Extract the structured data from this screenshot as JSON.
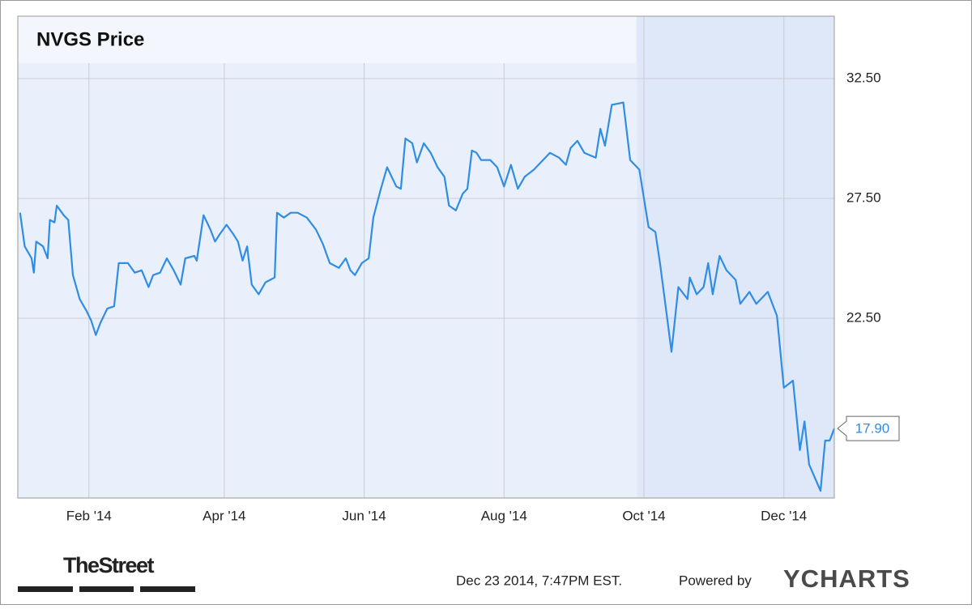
{
  "chart_data": {
    "type": "line",
    "title": "NVGS Price",
    "color": "#2f8de4",
    "x": [
      "2014-01-02",
      "2014-01-04",
      "2014-01-07",
      "2014-01-08",
      "2014-01-09",
      "2014-01-12",
      "2014-01-14",
      "2014-01-15",
      "2014-01-17",
      "2014-01-18",
      "2014-01-21",
      "2014-01-23",
      "2014-01-25",
      "2014-01-28",
      "2014-01-31",
      "2014-02-02",
      "2014-02-04",
      "2014-02-06",
      "2014-02-09",
      "2014-02-12",
      "2014-02-14",
      "2014-02-18",
      "2014-02-21",
      "2014-02-24",
      "2014-02-27",
      "2014-03-01",
      "2014-03-04",
      "2014-03-07",
      "2014-03-10",
      "2014-03-13",
      "2014-03-15",
      "2014-03-19",
      "2014-03-20",
      "2014-03-23",
      "2014-03-26",
      "2014-03-28",
      "2014-03-30",
      "2014-04-02",
      "2014-04-05",
      "2014-04-07",
      "2014-04-09",
      "2014-04-11",
      "2014-04-13",
      "2014-04-16",
      "2014-04-19",
      "2014-04-23",
      "2014-04-24",
      "2014-04-27",
      "2014-04-30",
      "2014-05-03",
      "2014-05-07",
      "2014-05-11",
      "2014-05-14",
      "2014-05-17",
      "2014-05-21",
      "2014-05-24",
      "2014-05-26",
      "2014-05-28",
      "2014-05-31",
      "2014-06-03",
      "2014-06-05",
      "2014-06-08",
      "2014-06-11",
      "2014-06-15",
      "2014-06-17",
      "2014-06-19",
      "2014-06-22",
      "2014-06-24",
      "2014-06-27",
      "2014-06-30",
      "2014-07-03",
      "2014-07-06",
      "2014-07-08",
      "2014-07-11",
      "2014-07-14",
      "2014-07-16",
      "2014-07-18",
      "2014-07-20",
      "2014-07-22",
      "2014-07-26",
      "2014-07-29",
      "2014-08-01",
      "2014-08-04",
      "2014-08-07",
      "2014-08-10",
      "2014-08-14",
      "2014-08-18",
      "2014-08-21",
      "2014-08-25",
      "2014-08-28",
      "2014-08-30",
      "2014-09-02",
      "2014-09-05",
      "2014-09-10",
      "2014-09-12",
      "2014-09-14",
      "2014-09-17",
      "2014-09-22",
      "2014-09-25",
      "2014-09-29",
      "2014-10-03",
      "2014-10-06",
      "2014-10-08",
      "2014-10-11",
      "2014-10-13",
      "2014-10-16",
      "2014-10-20",
      "2014-10-21",
      "2014-10-24",
      "2014-10-27",
      "2014-10-29",
      "2014-10-31",
      "2014-11-03",
      "2014-11-06",
      "2014-11-10",
      "2014-11-12",
      "2014-11-16",
      "2014-11-19",
      "2014-11-24",
      "2014-11-28",
      "2014-12-01",
      "2014-12-05",
      "2014-12-08",
      "2014-12-10",
      "2014-12-12",
      "2014-12-17",
      "2014-12-19",
      "2014-12-21",
      "2014-12-23"
    ],
    "values": [
      26.9,
      25.5,
      25.0,
      24.4,
      25.7,
      25.5,
      25.0,
      26.6,
      26.5,
      27.2,
      26.8,
      26.6,
      24.3,
      23.3,
      22.8,
      22.4,
      21.8,
      22.3,
      22.9,
      23.0,
      24.8,
      24.8,
      24.4,
      24.5,
      23.8,
      24.3,
      24.4,
      25.0,
      24.5,
      23.9,
      25.0,
      25.1,
      24.9,
      26.8,
      26.2,
      25.7,
      26.0,
      26.4,
      26.0,
      25.7,
      24.9,
      25.5,
      23.9,
      23.5,
      24.0,
      24.2,
      26.9,
      26.7,
      26.9,
      26.9,
      26.7,
      26.2,
      25.6,
      24.8,
      24.6,
      25.0,
      24.5,
      24.3,
      24.8,
      25.0,
      26.7,
      27.8,
      28.8,
      28.0,
      27.9,
      30.0,
      29.8,
      29.0,
      29.8,
      29.4,
      28.8,
      28.4,
      27.2,
      27.0,
      27.7,
      27.9,
      29.5,
      29.4,
      29.1,
      29.1,
      28.8,
      28.0,
      28.9,
      27.9,
      28.4,
      28.7,
      29.1,
      29.4,
      29.2,
      28.9,
      29.6,
      29.9,
      29.4,
      29.2,
      30.4,
      29.7,
      31.4,
      31.5,
      29.1,
      28.7,
      26.3,
      26.1,
      24.8,
      22.6,
      21.1,
      23.8,
      23.3,
      24.2,
      23.5,
      23.8,
      24.8,
      23.5,
      25.1,
      24.5,
      24.1,
      23.1,
      23.6,
      23.1,
      23.6,
      22.6,
      19.6,
      19.9,
      17.0,
      18.2,
      16.4,
      15.3,
      17.4,
      17.4,
      17.9
    ],
    "value_labels": [
      null,
      null,
      null,
      null,
      null,
      null,
      null,
      null,
      null,
      null,
      null,
      null,
      null,
      null,
      null,
      null,
      null,
      null,
      null,
      null,
      null,
      null,
      null,
      null,
      null,
      null,
      null,
      null,
      null,
      null,
      null,
      null,
      null,
      null,
      null,
      null,
      null,
      null,
      null,
      null,
      null,
      null,
      null,
      null,
      null,
      null,
      null,
      null,
      null,
      null,
      null,
      null,
      null,
      null,
      null,
      null,
      null,
      null,
      null,
      null,
      null,
      null,
      null,
      null,
      null,
      null,
      null,
      null,
      null,
      null,
      null,
      null,
      null,
      null,
      null,
      null,
      null,
      null,
      null,
      null,
      null,
      null,
      null,
      null,
      null,
      null,
      null,
      null,
      null,
      null,
      null,
      null,
      null,
      null,
      null,
      null,
      null,
      null,
      null,
      null,
      null,
      null,
      null,
      null,
      null,
      null,
      null,
      null,
      null,
      null,
      null,
      null,
      null,
      null,
      null,
      null,
      null,
      null,
      null,
      null,
      null,
      null,
      null,
      null,
      null,
      null,
      null,
      null,
      "17.90"
    ],
    "xlim": [
      "2014-01-01",
      "2014-12-23"
    ],
    "xticks": [
      {
        "value": "2014-02-01",
        "label": "Feb '14"
      },
      {
        "value": "2014-04-01",
        "label": "Apr '14"
      },
      {
        "value": "2014-06-01",
        "label": "Jun '14"
      },
      {
        "value": "2014-08-01",
        "label": "Aug '14"
      },
      {
        "value": "2014-10-01",
        "label": "Oct '14"
      },
      {
        "value": "2014-12-01",
        "label": "Dec '14"
      }
    ],
    "ylim": [
      15.0,
      35.1
    ],
    "yticks": [
      {
        "value": 32.5,
        "label": "32.50"
      },
      {
        "value": 27.5,
        "label": "27.50"
      },
      {
        "value": 22.5,
        "label": "22.50"
      }
    ],
    "grid": true,
    "highlight": {
      "from": "2014-09-28",
      "to": "2014-12-23",
      "color": "#dfe8f8"
    }
  },
  "footer": {
    "source": "TheStreet",
    "timestamp": "Dec 23 2014, 7:47PM EST.",
    "powered": "Powered by",
    "logo": "YCHARTS"
  }
}
